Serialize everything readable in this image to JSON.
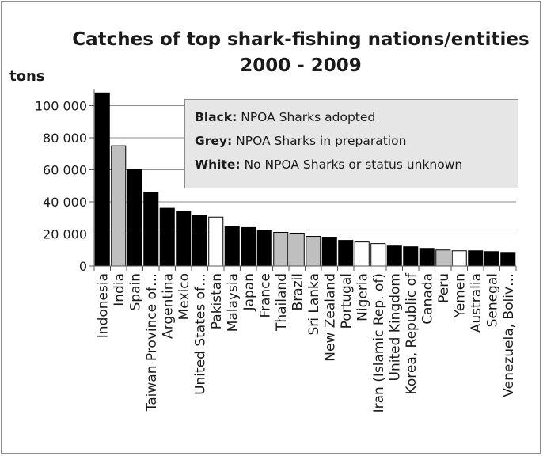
{
  "chart_data": {
    "type": "bar",
    "title_lines": [
      "Catches of top shark-fishing nations/entities",
      "2000 - 2009"
    ],
    "ylabel": "tons",
    "xlabel": "",
    "ylim": [
      0,
      110000
    ],
    "yticks": [
      0,
      20000,
      40000,
      60000,
      80000,
      100000
    ],
    "ytick_labels": [
      "0",
      "20 000",
      "40 000",
      "60 000",
      "80 000",
      "100 000"
    ],
    "grid": true,
    "colors": {
      "black": "#000000",
      "grey": "#bfbfbf",
      "white": "#ffffff"
    },
    "categories": [
      "Indonesia",
      "India",
      "Spain",
      "Taiwan Province of…",
      "Argentina",
      "Mexico",
      "United States of…",
      "Pakistan",
      "Malaysia",
      "Japan",
      "France",
      "Thailand",
      "Brazil",
      "Sri Lanka",
      "New Zealand",
      "Portugal",
      "Nigeria",
      "Iran (Islamic Rep. of)",
      "United Kingdom",
      "Korea, Republic of",
      "Canada",
      "Peru",
      "Yemen",
      "Australia",
      "Senegal",
      "Venezuela, Boliv…"
    ],
    "values": [
      108000,
      75000,
      60000,
      46000,
      36000,
      34000,
      31500,
      30500,
      24500,
      24000,
      22000,
      21000,
      20500,
      18500,
      18000,
      16000,
      15000,
      14000,
      12500,
      12000,
      11000,
      10000,
      9500,
      9500,
      9000,
      8500
    ],
    "status": [
      "black",
      "grey",
      "black",
      "black",
      "black",
      "black",
      "black",
      "white",
      "black",
      "black",
      "black",
      "grey",
      "grey",
      "grey",
      "black",
      "black",
      "white",
      "white",
      "black",
      "black",
      "black",
      "grey",
      "white",
      "black",
      "black",
      "black"
    ],
    "legend": [
      {
        "key": "Black:",
        "text": "NPOA Sharks adopted"
      },
      {
        "key": "Grey:",
        "text": "NPOA  Sharks in preparation"
      },
      {
        "key": "White:",
        "text": " No NPOA Sharks  or status unknown"
      }
    ]
  }
}
